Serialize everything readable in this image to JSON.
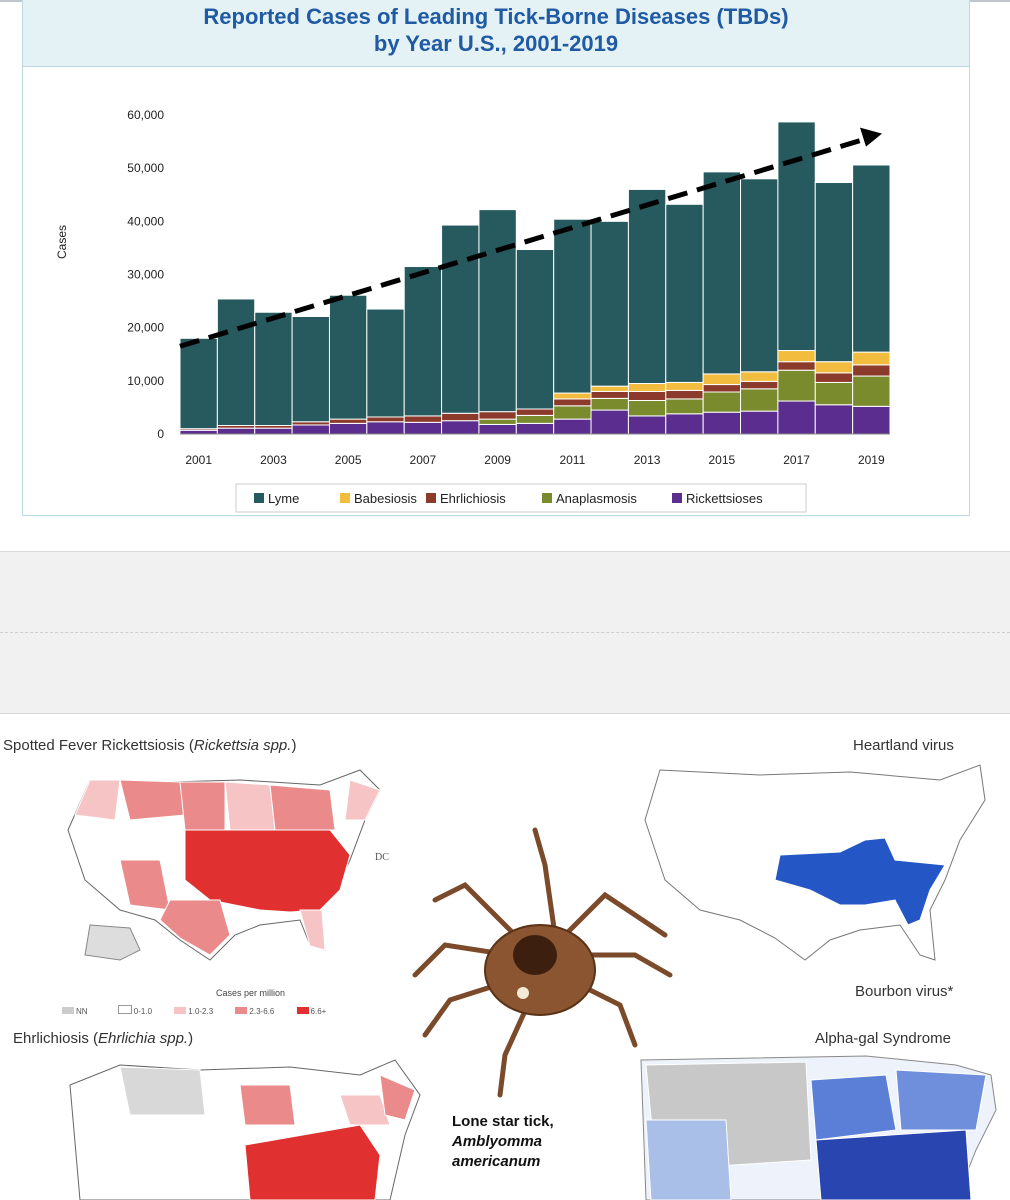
{
  "chart_data": {
    "type": "bar",
    "stacked": true,
    "title_line1": "Reported Cases of Leading Tick-Borne Diseases (TBDs)",
    "title_line2": "by Year U.S., 2001-2019",
    "ylabel": "Cases",
    "ylim": [
      0,
      60000
    ],
    "yticks": [
      "0",
      "10,000",
      "20,000",
      "30,000",
      "40,000",
      "50,000",
      "60,000"
    ],
    "categories": [
      "2001",
      "2002",
      "2003",
      "2004",
      "2005",
      "2006",
      "2007",
      "2008",
      "2009",
      "2010",
      "2011",
      "2012",
      "2013",
      "2014",
      "2015",
      "2016",
      "2017",
      "2018",
      "2019"
    ],
    "xticks_shown": [
      "2001",
      "2003",
      "2005",
      "2007",
      "2009",
      "2011",
      "2013",
      "2015",
      "2017",
      "2019"
    ],
    "series": [
      {
        "name": "Rickettsioses",
        "color": "#5b2d8e",
        "values": [
          700,
          1100,
          1100,
          1700,
          2000,
          2300,
          2200,
          2500,
          1800,
          2000,
          2800,
          4500,
          3400,
          3800,
          4100,
          4300,
          6200,
          5500,
          5200
        ]
      },
      {
        "name": "Anaplasmosis",
        "color": "#7a8b2e",
        "values": [
          0,
          0,
          0,
          0,
          0,
          0,
          0,
          0,
          1000,
          1500,
          2500,
          2200,
          2900,
          2800,
          3800,
          4200,
          5800,
          4200,
          5700
        ]
      },
      {
        "name": "Ehrlichiosis",
        "color": "#8b3a2b",
        "values": [
          300,
          500,
          500,
          600,
          800,
          900,
          1200,
          1400,
          1400,
          1200,
          1300,
          1300,
          1700,
          1600,
          1400,
          1400,
          1600,
          1800,
          2100
        ]
      },
      {
        "name": "Babesiosis",
        "color": "#f2bd3f",
        "values": [
          0,
          0,
          0,
          0,
          0,
          0,
          0,
          0,
          0,
          0,
          1100,
          1000,
          1500,
          1500,
          2000,
          1800,
          2100,
          2100,
          2400
        ]
      },
      {
        "name": "Lyme",
        "color": "#265a5f",
        "values": [
          17000,
          23800,
          21300,
          19800,
          23300,
          20300,
          28100,
          35400,
          38000,
          30000,
          32700,
          31000,
          36500,
          33500,
          38000,
          36300,
          43000,
          33700,
          35200
        ]
      }
    ],
    "legend_order": [
      "Lyme",
      "Babesiosis",
      "Ehrlichiosis",
      "Anaplasmosis",
      "Rickettsioses"
    ],
    "legend_position": "bottom",
    "trend_arrow": {
      "style": "dashed",
      "from": 16500,
      "to": 56500
    },
    "grid": false
  },
  "maps": {
    "spotted_fever_title": "Spotted Fever Rickettsiosis (",
    "spotted_fever_italic": "Rickettsia spp.",
    "spotted_fever_close": ")",
    "dc_label": "DC",
    "legend_title": "Cases per million",
    "legend_items": [
      "NN",
      "0-1.0",
      "1.0-2.3",
      "2.3-6.6",
      "6.6+"
    ],
    "ehrlichiosis_title": "Ehrlichiosis (",
    "ehrlichiosis_italic": "Ehrlichia spp.",
    "ehrlichiosis_close": ")",
    "heartland": "Heartland virus",
    "bourbon": "Bourbon virus*",
    "alphagal": "Alpha-gal Syndrome",
    "tick_caption_1": "Lone star tick,",
    "tick_caption_2": "Amblyomma",
    "tick_caption_3": "americanum"
  }
}
